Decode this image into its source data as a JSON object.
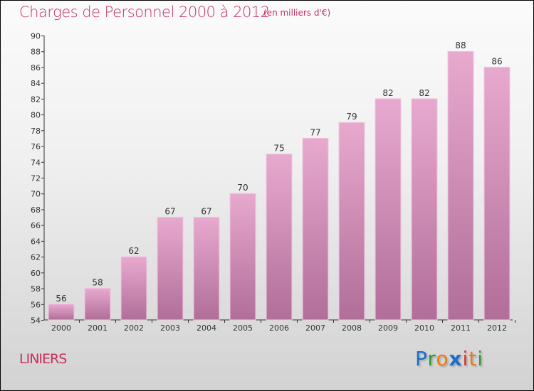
{
  "title": "Charges de Personnel 2000 à 2012",
  "subtitle": "(en milliers d'€)",
  "city": "LINIERS",
  "logo": {
    "text": "Proxiti",
    "letters": [
      "P",
      "r",
      "o",
      "x",
      "i",
      "t",
      "i"
    ],
    "colors": [
      "#1a6fc9",
      "#2a9a3a",
      "#f07a10",
      "#1a6fc9",
      "#e03020",
      "#f07a10",
      "#2a9a3a"
    ]
  },
  "colors": {
    "bar_top": "#e8a9cf",
    "bar_bottom": "#b06e98",
    "text": "#c8305e"
  },
  "chart_data": {
    "type": "bar",
    "title": "Charges de Personnel 2000 à 2012",
    "ylabel": "(en milliers d'€)",
    "categories": [
      "2000",
      "2001",
      "2002",
      "2003",
      "2004",
      "2005",
      "2006",
      "2007",
      "2008",
      "2009",
      "2010",
      "2011",
      "2012"
    ],
    "values": [
      56,
      58,
      62,
      67,
      67,
      70,
      75,
      77,
      79,
      82,
      82,
      88,
      86
    ],
    "ylim": [
      54,
      90
    ],
    "yticks": [
      54,
      56,
      58,
      60,
      62,
      64,
      66,
      68,
      70,
      72,
      74,
      76,
      78,
      80,
      82,
      84,
      86,
      88,
      90
    ],
    "grid": false
  }
}
